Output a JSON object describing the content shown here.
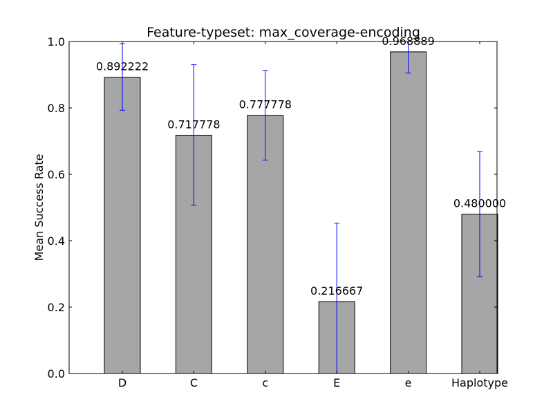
{
  "chart_data": {
    "type": "bar",
    "title": "Feature-typeset: max_coverage-encoding",
    "xlabel": "",
    "ylabel": "Mean Success Rate",
    "ylim": [
      0.0,
      1.0
    ],
    "yticks": [
      "0.0",
      "0.2",
      "0.4",
      "0.6",
      "0.8",
      "1.0"
    ],
    "categories": [
      "D",
      "C",
      "c",
      "E",
      "e",
      "Haplotype"
    ],
    "values": [
      0.892222,
      0.717778,
      0.777778,
      0.216667,
      0.968889,
      0.48
    ],
    "value_labels": [
      "0.892222",
      "0.717778",
      "0.777778",
      "0.216667",
      "0.968889",
      "0.480000"
    ],
    "error_low": [
      0.793,
      0.507,
      0.643,
      0.0,
      0.905,
      0.292
    ],
    "error_high": [
      0.993,
      0.93,
      0.913,
      0.453,
      1.0,
      0.668
    ],
    "grid": false,
    "colors": {
      "bar_fill": "#a6a6a6",
      "bar_edge": "#000000",
      "error_bar": "#0000ff"
    }
  }
}
